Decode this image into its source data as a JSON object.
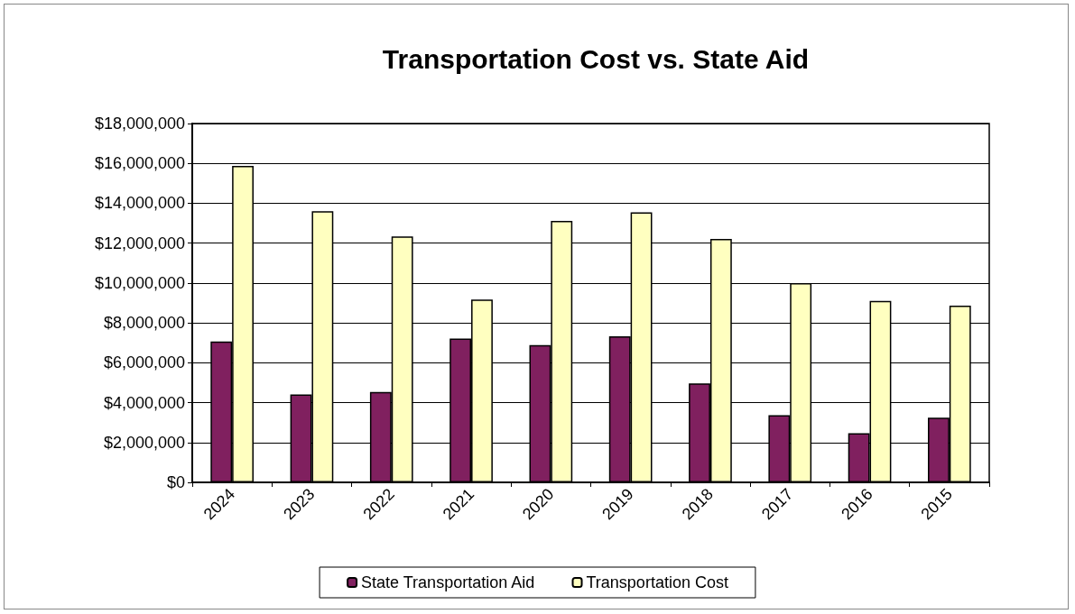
{
  "chart_data": {
    "type": "bar",
    "title": "Transportation Cost vs. State Aid",
    "categories": [
      "2024",
      "2023",
      "2022",
      "2021",
      "2020",
      "2019",
      "2018",
      "2017",
      "2016",
      "2015"
    ],
    "series": [
      {
        "name": "State Transportation Aid",
        "color": "#80205f",
        "values": [
          7070000,
          4410000,
          4530000,
          7210000,
          6890000,
          7330000,
          4960000,
          3370000,
          2460000,
          3250000
        ]
      },
      {
        "name": "Transportation Cost",
        "color": "#ffffc0",
        "values": [
          15870000,
          13600000,
          12330000,
          9170000,
          13120000,
          13540000,
          12210000,
          10000000,
          9100000,
          8860000
        ]
      }
    ],
    "ylim": [
      0,
      18000000
    ],
    "yticks": [
      {
        "value": 0,
        "label": "$0"
      },
      {
        "value": 2000000,
        "label": "$2,000,000"
      },
      {
        "value": 4000000,
        "label": "$4,000,000"
      },
      {
        "value": 6000000,
        "label": "$6,000,000"
      },
      {
        "value": 8000000,
        "label": "$8,000,000"
      },
      {
        "value": 10000000,
        "label": "$10,000,000"
      },
      {
        "value": 12000000,
        "label": "$12,000,000"
      },
      {
        "value": 14000000,
        "label": "$14,000,000"
      },
      {
        "value": 16000000,
        "label": "$16,000,000"
      },
      {
        "value": 18000000,
        "label": "$18,000,000"
      }
    ],
    "grid": "y",
    "legend": "bottom"
  }
}
